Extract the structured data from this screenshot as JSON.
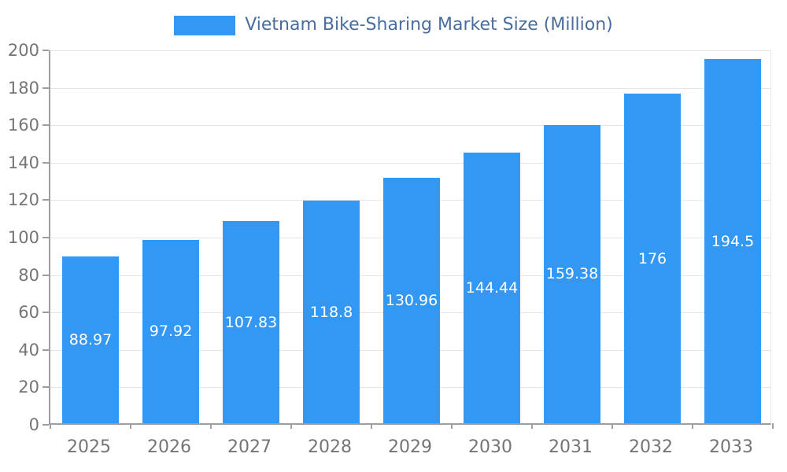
{
  "chart_data": {
    "type": "bar",
    "title": "Vietnam Bike-Sharing Market Size (Million)",
    "categories": [
      "2025",
      "2026",
      "2027",
      "2028",
      "2029",
      "2030",
      "2031",
      "2032",
      "2033"
    ],
    "values": [
      88.97,
      97.92,
      107.83,
      118.8,
      130.96,
      144.44,
      159.38,
      176,
      194.5
    ],
    "value_labels": [
      "88.97",
      "97.92",
      "107.83",
      "118.8",
      "130.96",
      "144.44",
      "159.38",
      "176",
      "194.5"
    ],
    "xlabel": "",
    "ylabel": "",
    "ylim": [
      0,
      200
    ],
    "y_ticks": [
      0,
      20,
      40,
      60,
      80,
      100,
      120,
      140,
      160,
      180,
      200
    ],
    "grid": true,
    "legend_position": "top",
    "colors": {
      "bar": "#3398f4",
      "bar_value_text": "#ffffff",
      "title_text": "#4a6d9e",
      "axis_text": "#757575",
      "gridline": "#e6e6e6",
      "axis_line": "#9e9e9e"
    }
  }
}
